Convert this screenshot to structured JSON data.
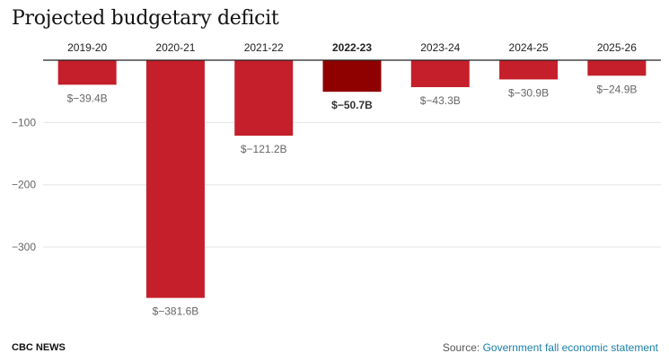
{
  "chart_data": {
    "type": "bar",
    "title": "Projected budgetary deficit",
    "categories": [
      "2019-20",
      "2020-21",
      "2021-22",
      "2022-23",
      "2023-24",
      "2024-25",
      "2025-26"
    ],
    "values": [
      -39.4,
      -381.6,
      -121.2,
      -50.7,
      -43.3,
      -30.9,
      -24.9
    ],
    "value_labels": [
      "$−39.4B",
      "$−381.6B",
      "$−121.2B",
      "$−50.7B",
      "$−43.3B",
      "$−30.9B",
      "$−24.9B"
    ],
    "highlight_index": 3,
    "yticks": [
      -100,
      -200,
      -300
    ],
    "ytick_labels": [
      "−100",
      "−200",
      "−300"
    ],
    "ylim": [
      -400,
      0
    ],
    "xlabel": "",
    "ylabel": "",
    "grid": true,
    "category_position": "top"
  },
  "colors": {
    "bar": "#c41f2a",
    "highlight": "#8f0000",
    "grid": "#e6e6e6",
    "axis": "#222222"
  },
  "footer": {
    "brand": "CBC NEWS",
    "source_prefix": "Source: ",
    "source_link": "Government fall economic statement"
  }
}
